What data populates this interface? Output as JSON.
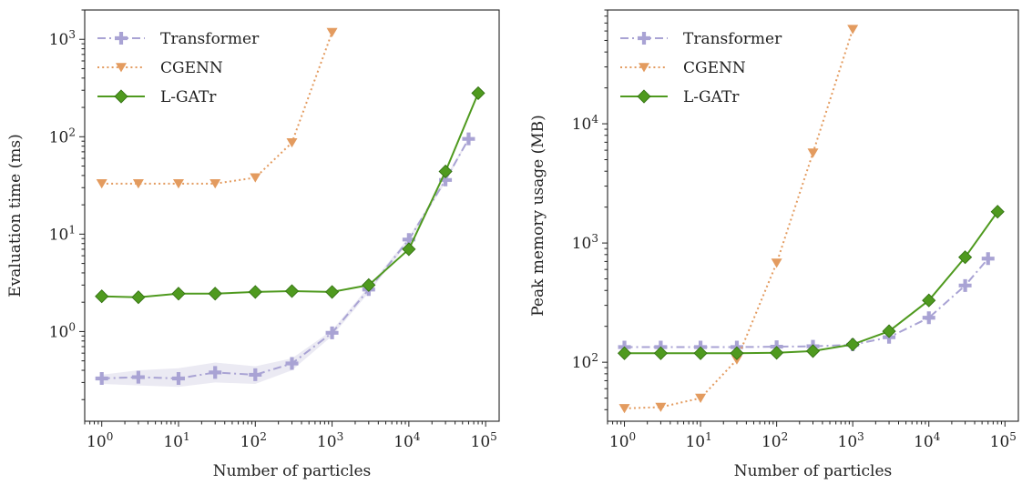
{
  "colors": {
    "transformer": "#a9a3d4",
    "transformer_band": "#ebeaf3",
    "cgenn": "#e39b5f",
    "lgatr": "#4f9a1f",
    "axis": "#222222"
  },
  "chart_data": [
    {
      "type": "line",
      "xlabel": "Number of particles",
      "ylabel": "Evaluation time (ms)",
      "xscale": "log",
      "yscale": "log",
      "xlim": [
        0.6,
        150000
      ],
      "ylim": [
        0.12,
        2000
      ],
      "xticks": [
        1,
        10,
        100,
        1000,
        10000,
        100000
      ],
      "yticks": [
        1,
        10,
        100,
        1000
      ],
      "grid": false,
      "legend_position": "top-left",
      "series": [
        {
          "name": "Transformer",
          "key": "transformer",
          "marker": "plus",
          "linestyle": "dashdot",
          "x": [
            1,
            3,
            10,
            30,
            100,
            300,
            1000,
            3000,
            10000,
            30000,
            60000
          ],
          "y": [
            0.33,
            0.34,
            0.33,
            0.38,
            0.36,
            0.47,
            0.97,
            2.7,
            8.8,
            36,
            95
          ],
          "band_low": [
            0.29,
            0.28,
            0.27,
            0.3,
            0.29,
            0.4,
            0.9,
            2.5,
            8.3,
            34,
            92
          ],
          "band_high": [
            0.36,
            0.4,
            0.42,
            0.48,
            0.44,
            0.53,
            1.03,
            2.9,
            9.3,
            38,
            98
          ]
        },
        {
          "name": "CGENN",
          "key": "cgenn",
          "marker": "triangle-down",
          "linestyle": "dotted",
          "x": [
            1,
            3,
            10,
            30,
            100,
            300,
            1000
          ],
          "y": [
            33,
            33,
            33,
            33,
            38,
            87,
            1180
          ]
        },
        {
          "name": "L-GATr",
          "key": "lgatr",
          "marker": "diamond",
          "linestyle": "solid",
          "x": [
            1,
            3,
            10,
            30,
            100,
            300,
            1000,
            3000,
            10000,
            30000,
            80000
          ],
          "y": [
            2.3,
            2.25,
            2.45,
            2.45,
            2.55,
            2.6,
            2.55,
            3.0,
            7.0,
            44,
            280
          ]
        }
      ]
    },
    {
      "type": "line",
      "xlabel": "Number of particles",
      "ylabel": "Peak memory usage (MB)",
      "xscale": "log",
      "yscale": "log",
      "xlim": [
        0.6,
        150000
      ],
      "ylim": [
        32,
        90000
      ],
      "xticks": [
        1,
        10,
        100,
        1000,
        10000,
        100000
      ],
      "yticks": [
        100,
        1000,
        10000
      ],
      "grid": false,
      "legend_position": "top-left",
      "series": [
        {
          "name": "Transformer",
          "key": "transformer",
          "marker": "plus",
          "linestyle": "dashdot",
          "x": [
            1,
            3,
            10,
            30,
            100,
            300,
            1000,
            3000,
            10000,
            30000,
            60000
          ],
          "y": [
            134,
            134,
            134,
            134,
            135,
            136,
            140,
            162,
            236,
            440,
            740
          ]
        },
        {
          "name": "CGENN",
          "key": "cgenn",
          "marker": "triangle-down",
          "linestyle": "dotted",
          "x": [
            1,
            3,
            10,
            30,
            100,
            300,
            1000
          ],
          "y": [
            41,
            42,
            50,
            105,
            680,
            5700,
            62000
          ]
        },
        {
          "name": "L-GATr",
          "key": "lgatr",
          "marker": "diamond",
          "linestyle": "solid",
          "x": [
            1,
            3,
            10,
            30,
            100,
            300,
            1000,
            3000,
            10000,
            30000,
            80000
          ],
          "y": [
            119,
            119,
            119,
            119,
            120,
            124,
            141,
            182,
            330,
            760,
            1830
          ]
        }
      ]
    }
  ]
}
